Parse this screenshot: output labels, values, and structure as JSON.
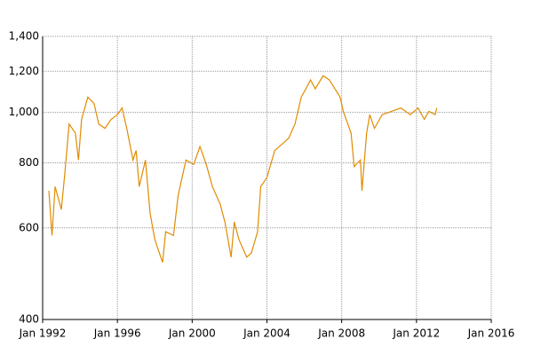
{
  "chart_data": {
    "type": "line",
    "log_y": true,
    "grid": true,
    "x": [
      "1992-05",
      "1992-07",
      "1992-09",
      "1993-01",
      "1993-03",
      "1993-06",
      "1993-10",
      "1993-12",
      "1994-02",
      "1994-06",
      "1994-10",
      "1995-01",
      "1995-05",
      "1995-09",
      "1996-01",
      "1996-04",
      "1996-07",
      "1996-11",
      "1997-01",
      "1997-03",
      "1997-07",
      "1997-10",
      "1998-01",
      "1998-06",
      "1998-08",
      "1999-01",
      "1999-04",
      "1999-09",
      "2000-02",
      "2000-06",
      "2000-10",
      "2001-02",
      "2001-07",
      "2001-10",
      "2002-02",
      "2002-04",
      "2002-07",
      "2002-12",
      "2003-03",
      "2003-07",
      "2003-09",
      "2004-01",
      "2004-06",
      "2004-12",
      "2005-03",
      "2005-07",
      "2005-11",
      "2006-02",
      "2006-05",
      "2006-08",
      "2007-01",
      "2007-05",
      "2007-12",
      "2008-02",
      "2008-07",
      "2008-09",
      "2009-01",
      "2009-02",
      "2009-05",
      "2009-07",
      "2009-10",
      "2010-03",
      "2010-09",
      "2011-03",
      "2011-09",
      "2012-02",
      "2012-06",
      "2012-09",
      "2013-01",
      "2013-02"
    ],
    "series": [
      {
        "color": "#e08c00",
        "values": [
          707,
          580,
          720,
          651,
          750,
          950,
          913,
          810,
          970,
          1070,
          1040,
          950,
          932,
          970,
          990,
          1020,
          932,
          810,
          845,
          720,
          810,
          640,
          570,
          515,
          590,
          580,
          693,
          810,
          795,
          860,
          795,
          720,
          666,
          616,
          527,
          616,
          570,
          527,
          537,
          590,
          720,
          750,
          845,
          876,
          893,
          950,
          1070,
          1110,
          1155,
          1110,
          1176,
          1155,
          1070,
          1005,
          913,
          787,
          810,
          707,
          913,
          990,
          932,
          990,
          1005,
          1020,
          990,
          1020,
          970,
          1005,
          990,
          1020
        ]
      }
    ],
    "xlim": [
      "1992-01",
      "2016-01"
    ],
    "xticks": [
      {
        "value": "1992-01",
        "label": "Jan 1992"
      },
      {
        "value": "1996-01",
        "label": "Jan 1996"
      },
      {
        "value": "2000-01",
        "label": "Jan 2000"
      },
      {
        "value": "2004-01",
        "label": "Jan 2004"
      },
      {
        "value": "2008-01",
        "label": "Jan 2008"
      },
      {
        "value": "2012-01",
        "label": "Jan 2012"
      },
      {
        "value": "2016-01",
        "label": "Jan 2016"
      }
    ],
    "ylim": [
      400,
      1400
    ],
    "yticks": [
      400,
      600,
      800,
      {
        "value": 1000,
        "label": "1,000"
      },
      {
        "value": 1200,
        "label": "1,200"
      },
      {
        "value": 1400,
        "label": "1,400"
      }
    ]
  }
}
